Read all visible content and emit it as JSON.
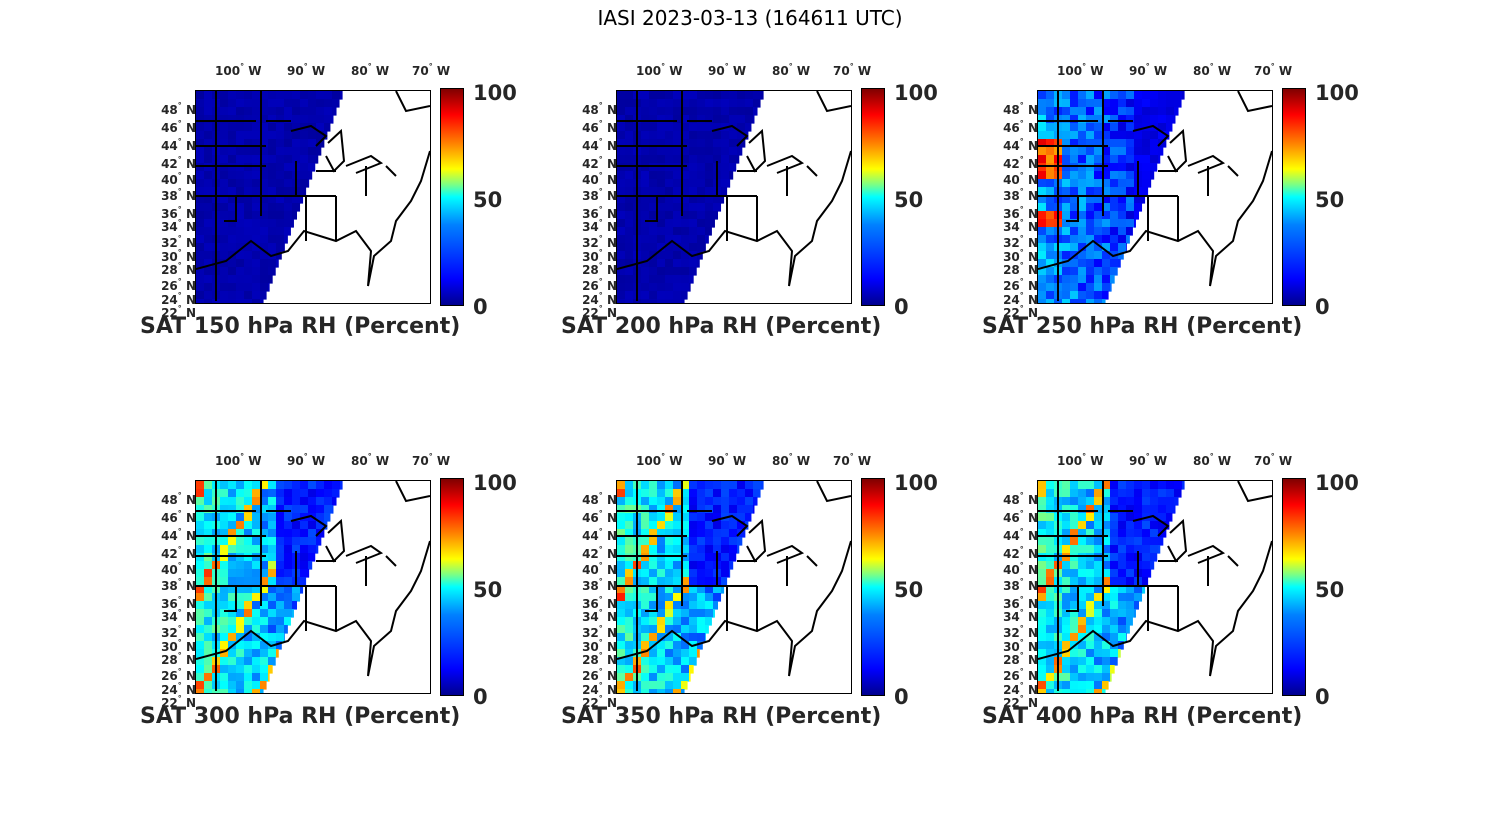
{
  "figure_title": "IASI 2023-03-13 (164611 UTC)",
  "colors": {
    "colormap": "jet",
    "dry": "#00008f",
    "moist": "#800000",
    "outline": "#000000",
    "text": "#262626"
  },
  "lon_ticks": [
    "100",
    "90",
    "80",
    "70"
  ],
  "lon_suffix": "W",
  "lat_ticks": [
    "48",
    "46",
    "44",
    "42",
    "40",
    "38",
    "36",
    "34",
    "32",
    "30",
    "28",
    "26",
    "24",
    "22"
  ],
  "lat_suffix": "N",
  "colorbar_ticks": [
    "100",
    "50",
    "0"
  ],
  "panels": [
    {
      "title": "SAT 150 hPa RH (Percent)",
      "level": "150",
      "rh_pattern": "uniform-dry"
    },
    {
      "title": "SAT 200 hPa RH (Percent)",
      "level": "200",
      "rh_pattern": "uniform-dry"
    },
    {
      "title": "SAT 250 hPa RH (Percent)",
      "level": "250",
      "rh_pattern": "mixed-west-moist"
    },
    {
      "title": "SAT 300 hPa RH (Percent)",
      "level": "300",
      "rh_pattern": "moist-swaths"
    },
    {
      "title": "SAT 350 hPa RH (Percent)",
      "level": "350",
      "rh_pattern": "moist-swaths"
    },
    {
      "title": "SAT 400 hPa RH (Percent)",
      "level": "400",
      "rh_pattern": "moist-swaths"
    }
  ],
  "chart_data": {
    "type": "heatmap",
    "title": "IASI 2023-03-13 (164611 UTC)",
    "variable": "RH",
    "units": "Percent",
    "clim": [
      0,
      100
    ],
    "lon_range_west": [
      106,
      67
    ],
    "lat_range": [
      22,
      49
    ],
    "levels_hPa": [
      150,
      200,
      250,
      300,
      350,
      400
    ]
  }
}
